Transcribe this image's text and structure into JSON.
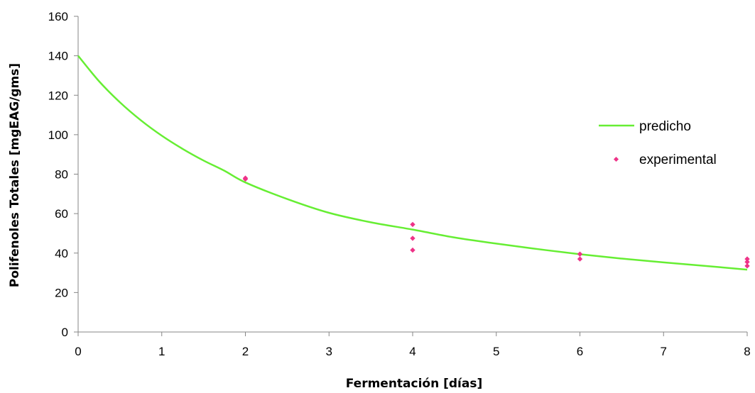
{
  "chart_data": {
    "type": "scatter",
    "title": "",
    "xlabel": "Fermentación [días]",
    "ylabel": "Polifenoles Totales [mgEAG/gms]",
    "xlim": [
      0,
      8
    ],
    "ylim": [
      0,
      160
    ],
    "xticks": [
      "0",
      "1",
      "2",
      "3",
      "4",
      "5",
      "6",
      "7",
      "8"
    ],
    "yticks": [
      "0",
      "20",
      "40",
      "60",
      "80",
      "100",
      "120",
      "140",
      "160"
    ],
    "grid": false,
    "legend_position": "right",
    "series": [
      {
        "name": "predicho",
        "kind": "line",
        "color": "#66ee33",
        "x": [
          0,
          0.25,
          0.5,
          0.75,
          1,
          1.25,
          1.5,
          1.75,
          2,
          2.5,
          3,
          3.5,
          4,
          4.5,
          5,
          5.5,
          6,
          6.5,
          7,
          7.5,
          8
        ],
        "y": [
          140,
          127.1,
          116.4,
          107.3,
          99.5,
          92.8,
          86.9,
          81.7,
          75.8,
          67.4,
          60.4,
          55.6,
          51.9,
          47.9,
          44.8,
          42.0,
          39.4,
          37.2,
          35.3,
          33.5,
          31.6
        ]
      },
      {
        "name": "experimental",
        "kind": "scatter",
        "color": "#ee3388",
        "x": [
          2,
          2,
          4,
          4,
          4,
          6,
          6,
          8,
          8,
          8
        ],
        "y": [
          78,
          77.5,
          54.5,
          47.5,
          41.5,
          39.5,
          37,
          37,
          35.5,
          33.5
        ]
      }
    ]
  }
}
